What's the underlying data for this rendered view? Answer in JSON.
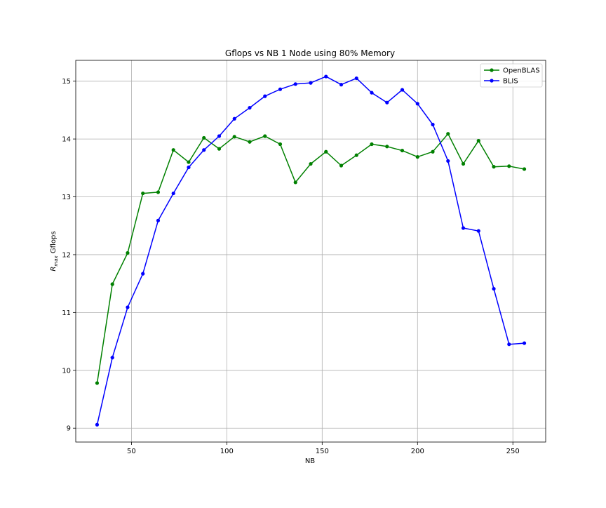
{
  "chart_data": {
    "type": "line",
    "title": "Gflops vs NB 1 Node using 80% Memory",
    "xlabel": "NB",
    "ylabel_main": "R",
    "ylabel_sub": "max",
    "ylabel_rest": " Gflops",
    "xlim": [
      20.8,
      267.2
    ],
    "ylim": [
      8.76,
      15.36
    ],
    "xticks": [
      50,
      100,
      150,
      200,
      250
    ],
    "yticks": [
      9,
      10,
      11,
      12,
      13,
      14,
      15
    ],
    "grid": true,
    "legend_position": "top-right",
    "x": [
      32,
      40,
      48,
      56,
      64,
      72,
      80,
      88,
      96,
      104,
      112,
      120,
      128,
      136,
      144,
      152,
      160,
      168,
      176,
      184,
      192,
      200,
      208,
      216,
      224,
      232,
      240,
      248,
      256
    ],
    "series": [
      {
        "name": "OpenBLAS",
        "color": "#008000",
        "values": [
          9.78,
          11.49,
          12.03,
          13.06,
          13.08,
          13.81,
          13.6,
          14.02,
          13.83,
          14.04,
          13.95,
          14.05,
          13.91,
          13.25,
          13.57,
          13.78,
          13.54,
          13.72,
          13.91,
          13.87,
          13.8,
          13.69,
          13.78,
          14.09,
          13.57,
          13.97,
          13.52,
          13.53,
          13.48
        ]
      },
      {
        "name": "BLIS",
        "color": "#0000ff",
        "values": [
          9.06,
          10.22,
          11.09,
          11.67,
          12.59,
          13.06,
          13.51,
          13.81,
          14.05,
          14.35,
          14.54,
          14.74,
          14.86,
          14.95,
          14.97,
          15.08,
          14.94,
          15.05,
          14.8,
          14.63,
          14.85,
          14.61,
          14.25,
          13.62,
          12.46,
          12.41,
          11.41,
          10.45,
          10.47
        ]
      }
    ]
  }
}
